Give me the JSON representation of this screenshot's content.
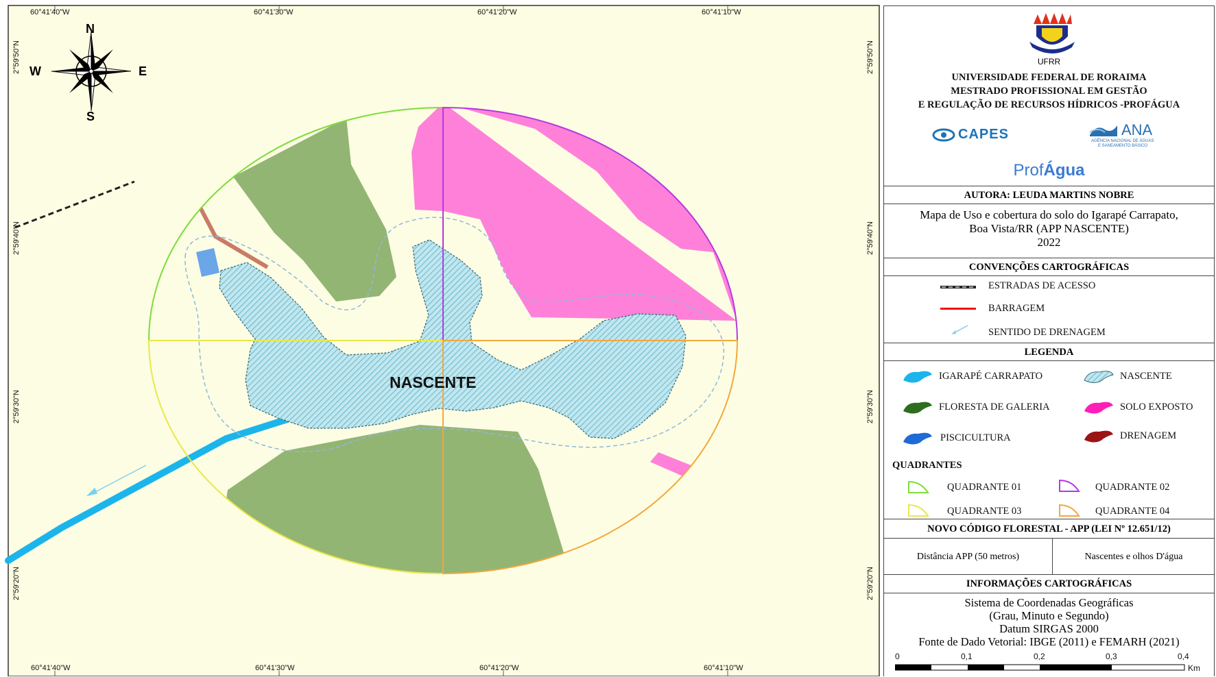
{
  "map": {
    "top_ticks": [
      "60°41'40\"W",
      "60°41'30\"W",
      "60°41'20\"W",
      "60°41'10\"W"
    ],
    "bottom_ticks": [
      "60°41'40\"W",
      "60°41'30\"W",
      "60°41'20\"W",
      "60°41'10\"W"
    ],
    "left_ticks": [
      "2°59'50\"N",
      "2°59'40\"N",
      "2°59'30\"N",
      "2°59'20\"N"
    ],
    "right_ticks": [
      "2°59'50\"N",
      "2°59'40\"N",
      "2°59'30\"N",
      "2°59'20\"N"
    ],
    "label": "NASCENTE",
    "compass": {
      "n": "N",
      "s": "S",
      "e": "E",
      "w": "W"
    },
    "colors": {
      "background": "#fdfde3",
      "floresta": "#93b574",
      "solo_exposto": "#ff80d9",
      "nascente": "#a8dde8",
      "igarape": "#1bb5ec",
      "piscicultura": "#6aa6e8",
      "drenagem": "#c97b68",
      "q1": "#7ddc3c",
      "q2": "#b439e0",
      "q3": "#e8e84a",
      "q4": "#f2a83c"
    }
  },
  "panel": {
    "logo_caption": "UFRR",
    "institution": [
      "UNIVERSIDADE FEDERAL DE RORAIMA",
      "MESTRADO PROFISSIONAL EM GESTÃO",
      "E REGULAÇÃO DE RECURSOS HÍDRICOS -PROFÁGUA"
    ],
    "capes": "CAPES",
    "ana": "ANA",
    "ana_sub1": "AGÊNCIA NACIONAL DE ÁGUAS",
    "ana_sub2": "E SANEAMENTO BÁSICO",
    "profagua_a": "Prof",
    "profagua_b": "Água",
    "author": "AUTORA: LEUDA MARTINS NOBRE",
    "title": [
      "Mapa de Uso e cobertura do solo do Igarapé Carrapato,",
      "Boa Vista/RR (APP NASCENTE)",
      "2022"
    ],
    "conventions_header": "CONVENÇÕES CARTOGRÁFICAS",
    "conventions": [
      "ESTRADAS DE ACESSO",
      "BARRAGEM",
      "SENTIDO DE DRENAGEM"
    ],
    "legend_header": "LEGENDA",
    "legend": {
      "igarape": "IGARAPÉ CARRAPATO",
      "nascente": "NASCENTE",
      "floresta": "FLORESTA DE GALERIA",
      "solo": "SOLO EXPOSTO",
      "piscicultura": "PISCICULTURA",
      "drenagem": "DRENAGEM"
    },
    "quadrants_header": "QUADRANTES",
    "quadrants": [
      "QUADRANTE 01",
      "QUADRANTE 02",
      "QUADRANTE 03",
      "QUADRANTE 04"
    ],
    "code_header": "NOVO CÓDIGO FLORESTAL - APP (LEI Nº 12.651/12)",
    "code_left": "Distância APP (50 metros)",
    "code_right": "Nascentes e olhos D'água",
    "info_header": "INFORMAÇÕES CARTOGRÁFICAS",
    "info": [
      "Sistema de Coordenadas Geográficas",
      "(Grau, Minuto e Segundo)",
      "Datum SIRGAS 2000",
      "Fonte de Dado Vetorial: IBGE (2011) e FEMARH (2021)"
    ],
    "scale_labels": [
      "0",
      "0,1",
      "0,2",
      "0,3",
      "0,4"
    ],
    "scale_unit": "Km"
  }
}
